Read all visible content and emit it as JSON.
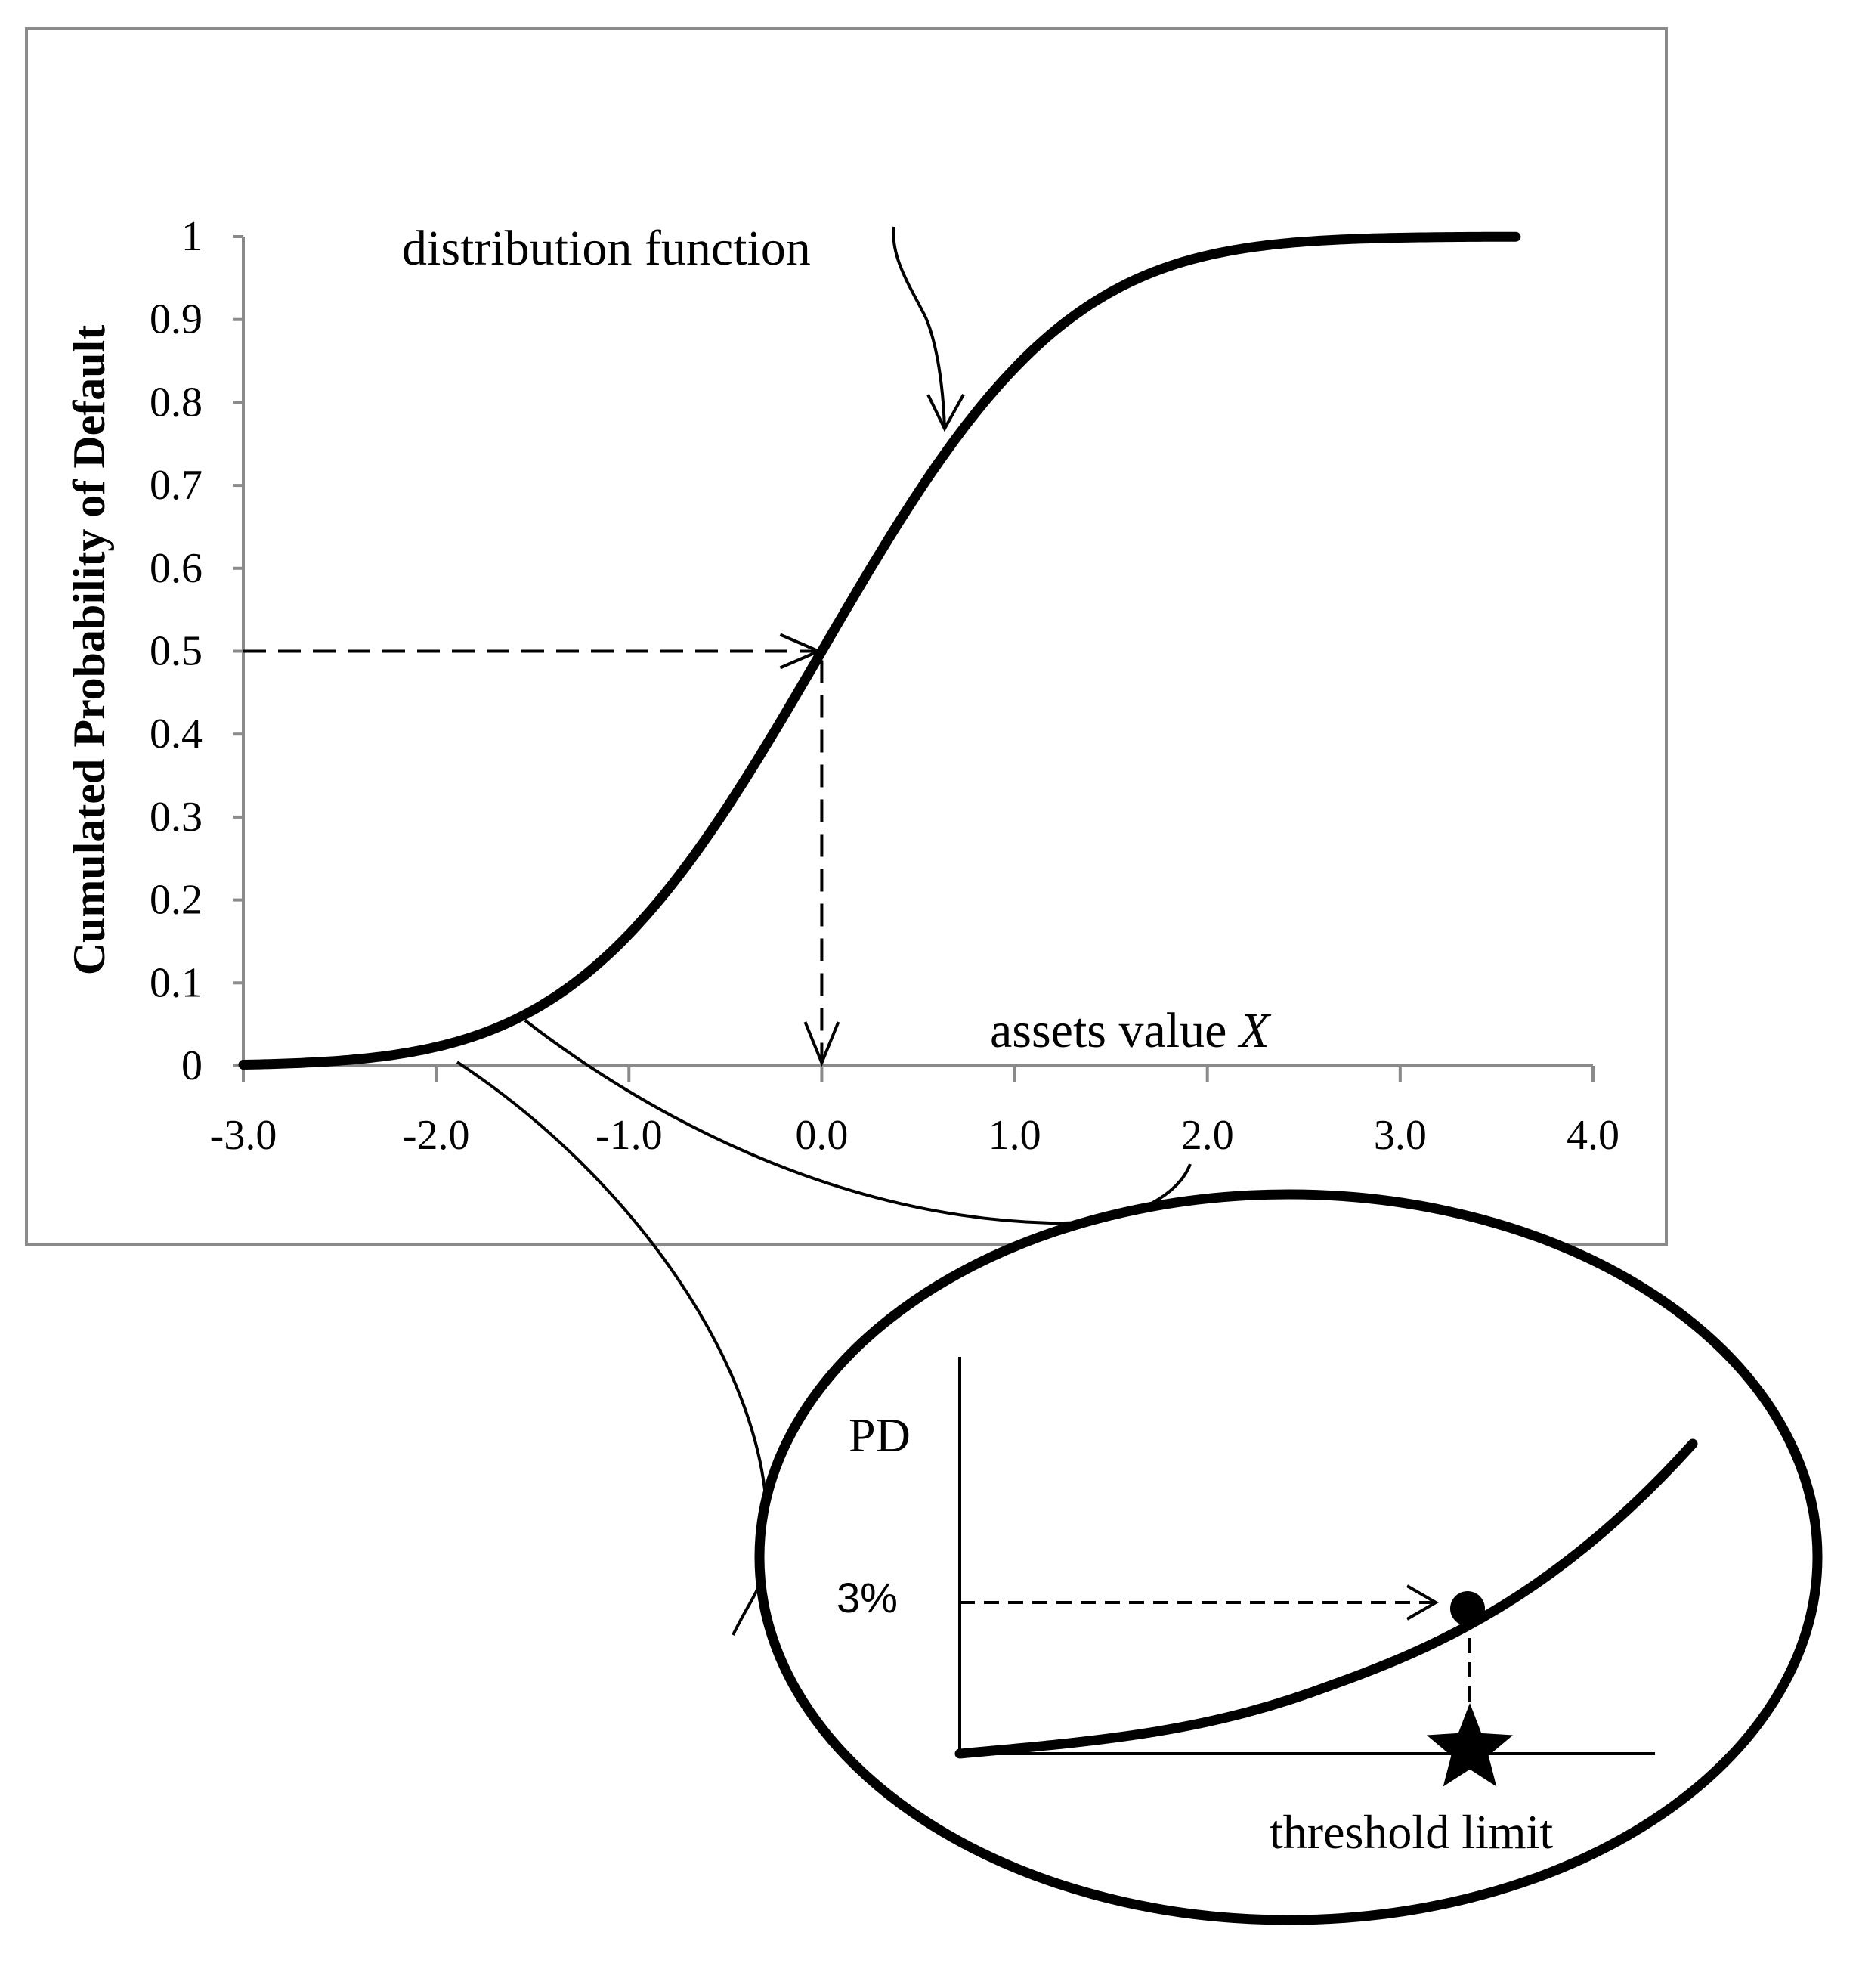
{
  "chart_data": {
    "type": "line",
    "ylabel": "Cumulated  Probability  of Default",
    "xlabel_text": "assets value ",
    "xlabel_var": "X",
    "annotation": "distribution  function",
    "xlim": [
      -3.0,
      4.0
    ],
    "ylim": [
      0,
      1
    ],
    "x_ticks": [
      "-3.0",
      "-2.0",
      "-1.0",
      "0.0",
      "1.0",
      "2.0",
      "3.0",
      "4.0"
    ],
    "y_ticks": [
      "0",
      "0.1",
      "0.2",
      "0.3",
      "0.4",
      "0.5",
      "0.6",
      "0.7",
      "0.8",
      "0.9",
      "1"
    ],
    "series": [
      {
        "distribution": "standard normal CDF",
        "x": [
          -3.0,
          -2.5,
          -2.0,
          -1.5,
          -1.0,
          -0.5,
          0.0,
          0.5,
          1.0,
          1.5,
          2.0,
          2.5,
          3.0,
          3.6
        ],
        "y": [
          0.0013,
          0.0062,
          0.0228,
          0.0668,
          0.1587,
          0.3085,
          0.5,
          0.6915,
          0.8413,
          0.9332,
          0.9772,
          0.9938,
          0.9987,
          0.9998
        ]
      }
    ],
    "reference_point": {
      "x": 0.0,
      "y": 0.5
    }
  },
  "inset": {
    "ylabel": "PD",
    "level_label": "3%",
    "xlabel": "threshold limit",
    "marker": "star-icon"
  }
}
